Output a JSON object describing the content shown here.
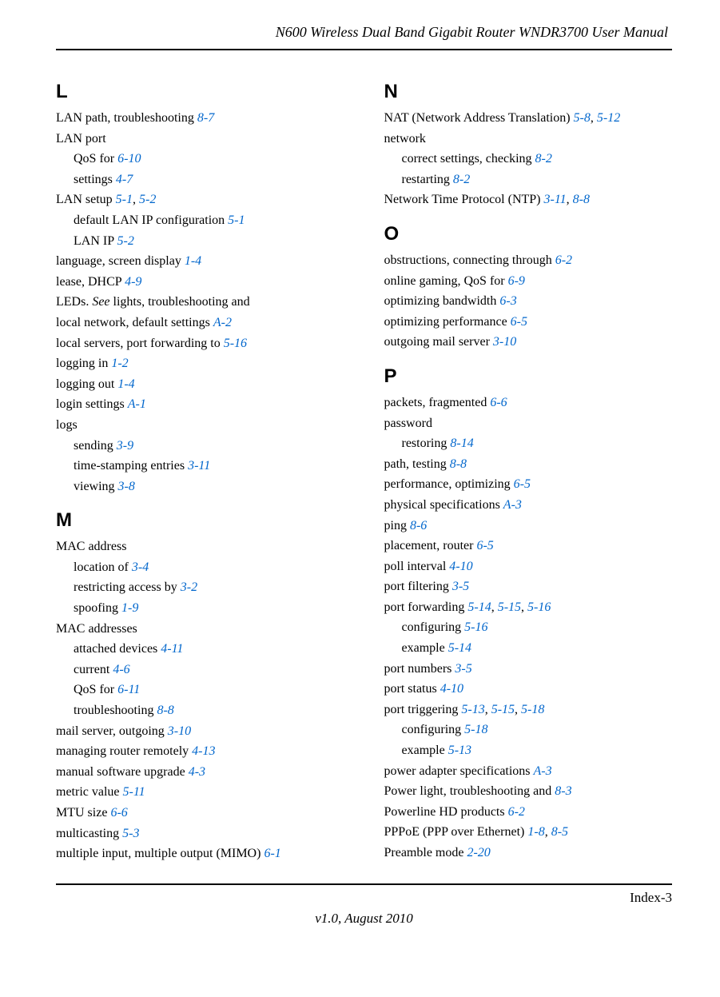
{
  "header": {
    "title": "N600 Wireless Dual Band Gigabit Router WNDR3700 User Manual"
  },
  "link_color": "#0066cc",
  "left": {
    "L": {
      "letter": "L",
      "items": [
        {
          "text": "LAN path, troubleshooting  ",
          "refs": [
            "8-7"
          ]
        },
        {
          "text": "LAN port"
        },
        {
          "text": "QoS for  ",
          "refs": [
            "6-10"
          ],
          "sub": true
        },
        {
          "text": "settings  ",
          "refs": [
            "4-7"
          ],
          "sub": true
        },
        {
          "text": "LAN setup  ",
          "refs": [
            "5-1",
            "5-2"
          ]
        },
        {
          "text": "default LAN IP configuration  ",
          "refs": [
            "5-1"
          ],
          "sub": true
        },
        {
          "text": "LAN IP  ",
          "refs": [
            "5-2"
          ],
          "sub": true
        },
        {
          "text": "language, screen display  ",
          "refs": [
            "1-4"
          ]
        },
        {
          "text": "lease, DHCP  ",
          "refs": [
            "4-9"
          ]
        },
        {
          "text_html": "LEDs. <span class=\"italic\">See</span> lights, troubleshooting and"
        },
        {
          "text": "local network, default settings  ",
          "refs": [
            "A-2"
          ]
        },
        {
          "text": "local servers, port forwarding to  ",
          "refs": [
            "5-16"
          ]
        },
        {
          "text": "logging in  ",
          "refs": [
            "1-2"
          ]
        },
        {
          "text": "logging out  ",
          "refs": [
            "1-4"
          ]
        },
        {
          "text": "login settings  ",
          "refs": [
            "A-1"
          ]
        },
        {
          "text": "logs"
        },
        {
          "text": "sending  ",
          "refs": [
            "3-9"
          ],
          "sub": true
        },
        {
          "text": "time-stamping entries  ",
          "refs": [
            "3-11"
          ],
          "sub": true
        },
        {
          "text": "viewing  ",
          "refs": [
            "3-8"
          ],
          "sub": true
        }
      ]
    },
    "M": {
      "letter": "M",
      "items": [
        {
          "text": "MAC address"
        },
        {
          "text": "location of  ",
          "refs": [
            "3-4"
          ],
          "sub": true
        },
        {
          "text": "restricting access by  ",
          "refs": [
            "3-2"
          ],
          "sub": true
        },
        {
          "text": "spoofing  ",
          "refs": [
            "1-9"
          ],
          "sub": true
        },
        {
          "text": "MAC addresses"
        },
        {
          "text": "attached devices  ",
          "refs": [
            "4-11"
          ],
          "sub": true
        },
        {
          "text": "current  ",
          "refs": [
            "4-6"
          ],
          "sub": true
        },
        {
          "text": "QoS for  ",
          "refs": [
            "6-11"
          ],
          "sub": true
        },
        {
          "text": "troubleshooting  ",
          "refs": [
            "8-8"
          ],
          "sub": true
        },
        {
          "text": "mail server, outgoing  ",
          "refs": [
            "3-10"
          ]
        },
        {
          "text": "managing router remotely  ",
          "refs": [
            "4-13"
          ]
        },
        {
          "text": "manual software upgrade  ",
          "refs": [
            "4-3"
          ]
        },
        {
          "text": "metric value  ",
          "refs": [
            "5-11"
          ]
        },
        {
          "text": "MTU size  ",
          "refs": [
            "6-6"
          ]
        },
        {
          "text": "multicasting  ",
          "refs": [
            "5-3"
          ]
        },
        {
          "text": "multiple input, multiple output (MIMO)  ",
          "refs": [
            "6-1"
          ]
        }
      ]
    }
  },
  "right": {
    "N": {
      "letter": "N",
      "items": [
        {
          "text": "NAT (Network Address Translation)  ",
          "refs": [
            "5-8",
            "5-12"
          ]
        },
        {
          "text": "network"
        },
        {
          "text": "correct settings, checking  ",
          "refs": [
            "8-2"
          ],
          "sub": true
        },
        {
          "text": "restarting  ",
          "refs": [
            "8-2"
          ],
          "sub": true
        },
        {
          "text": "Network Time Protocol (NTP)  ",
          "refs": [
            "3-11",
            "8-8"
          ]
        }
      ]
    },
    "O": {
      "letter": "O",
      "items": [
        {
          "text": "obstructions, connecting through  ",
          "refs": [
            "6-2"
          ]
        },
        {
          "text": "online gaming, QoS for  ",
          "refs": [
            "6-9"
          ]
        },
        {
          "text": "optimizing bandwidth  ",
          "refs": [
            "6-3"
          ]
        },
        {
          "text": "optimizing performance  ",
          "refs": [
            "6-5"
          ]
        },
        {
          "text": "outgoing mail server  ",
          "refs": [
            "3-10"
          ]
        }
      ]
    },
    "P": {
      "letter": "P",
      "items": [
        {
          "text": "packets, fragmented  ",
          "refs": [
            "6-6"
          ]
        },
        {
          "text": "password"
        },
        {
          "text": "restoring  ",
          "refs": [
            "8-14"
          ],
          "sub": true
        },
        {
          "text": "path, testing  ",
          "refs": [
            "8-8"
          ]
        },
        {
          "text": "performance, optimizing  ",
          "refs": [
            "6-5"
          ]
        },
        {
          "text": "physical specifications  ",
          "refs": [
            "A-3"
          ]
        },
        {
          "text": "ping  ",
          "refs": [
            "8-6"
          ]
        },
        {
          "text": "placement, router  ",
          "refs": [
            "6-5"
          ]
        },
        {
          "text": "poll interval  ",
          "refs": [
            "4-10"
          ]
        },
        {
          "text": "port filtering  ",
          "refs": [
            "3-5"
          ]
        },
        {
          "text": "port forwarding  ",
          "refs": [
            "5-14",
            "5-15",
            "5-16"
          ]
        },
        {
          "text": "configuring  ",
          "refs": [
            "5-16"
          ],
          "sub": true
        },
        {
          "text": "example  ",
          "refs": [
            "5-14"
          ],
          "sub": true
        },
        {
          "text": "port numbers  ",
          "refs": [
            "3-5"
          ]
        },
        {
          "text": "port status  ",
          "refs": [
            "4-10"
          ]
        },
        {
          "text": "port triggering  ",
          "refs": [
            "5-13",
            "5-15",
            "5-18"
          ]
        },
        {
          "text": "configuring  ",
          "refs": [
            "5-18"
          ],
          "sub": true
        },
        {
          "text": "example  ",
          "refs": [
            "5-13"
          ],
          "sub": true
        },
        {
          "text": "power adapter specifications  ",
          "refs": [
            "A-3"
          ]
        },
        {
          "text": "Power light, troubleshooting and  ",
          "refs": [
            "8-3"
          ]
        },
        {
          "text": "Powerline HD products  ",
          "refs": [
            "6-2"
          ]
        },
        {
          "text": "PPPoE (PPP over Ethernet)  ",
          "refs": [
            "1-8",
            "8-5"
          ]
        },
        {
          "text": "Preamble mode  ",
          "refs": [
            "2-20"
          ]
        }
      ]
    }
  },
  "footer": {
    "page": "Index-3",
    "version": "v1.0, August 2010"
  }
}
